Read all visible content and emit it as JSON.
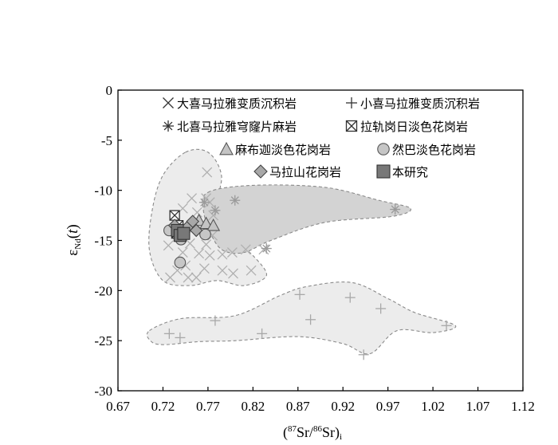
{
  "chart_data": {
    "type": "scatter",
    "xlabel": "(87Sr/86Sr)i",
    "ylabel": "εNd(t)",
    "xlim": [
      0.67,
      1.12
    ],
    "ylim": [
      -30,
      0
    ],
    "x_ticks": [
      "0.67",
      "0.72",
      "0.77",
      "0.82",
      "0.87",
      "0.92",
      "0.97",
      "1.02",
      "1.07",
      "1.12"
    ],
    "y_ticks": [
      "0",
      "-5",
      "-10",
      "-15",
      "-20",
      "-25",
      "-30"
    ],
    "legend_position": "top",
    "series": [
      {
        "name": "大喜马拉雅变质沉积岩",
        "marker": "x",
        "points": [
          [
            0.769,
            -8.2
          ],
          [
            0.752,
            -10.8
          ],
          [
            0.768,
            -10.8
          ],
          [
            0.772,
            -11.2
          ],
          [
            0.742,
            -11.8
          ],
          [
            0.758,
            -12.2
          ],
          [
            0.776,
            -12.5
          ],
          [
            0.743,
            -13.5
          ],
          [
            0.752,
            -14.0
          ],
          [
            0.775,
            -14.5
          ],
          [
            0.726,
            -15.5
          ],
          [
            0.75,
            -15.3
          ],
          [
            0.768,
            -15.4
          ],
          [
            0.742,
            -16.2
          ],
          [
            0.76,
            -16.3
          ],
          [
            0.772,
            -16.5
          ],
          [
            0.786,
            -16.4
          ],
          [
            0.797,
            -16.2
          ],
          [
            0.812,
            -15.9
          ],
          [
            0.832,
            -15.9
          ],
          [
            0.745,
            -17.5
          ],
          [
            0.736,
            -18.0
          ],
          [
            0.766,
            -17.8
          ],
          [
            0.786,
            -18.0
          ],
          [
            0.798,
            -18.3
          ],
          [
            0.818,
            -18.0
          ],
          [
            0.728,
            -18.7
          ],
          [
            0.748,
            -18.7
          ],
          [
            0.757,
            -18.7
          ]
        ]
      },
      {
        "name": "小喜马拉雅变质沉积岩",
        "marker": "+",
        "points": [
          [
            0.727,
            -24.3
          ],
          [
            0.739,
            -24.7
          ],
          [
            0.778,
            -23.0
          ],
          [
            0.83,
            -24.3
          ],
          [
            0.872,
            -20.4
          ],
          [
            0.884,
            -22.9
          ],
          [
            0.928,
            -20.7
          ],
          [
            0.943,
            -26.4
          ],
          [
            0.962,
            -21.8
          ],
          [
            1.035,
            -23.5
          ]
        ]
      },
      {
        "name": "北喜马拉雅穹窿片麻岩",
        "marker": "asterisk",
        "points": [
          [
            0.766,
            -11.2
          ],
          [
            0.778,
            -12.0
          ],
          [
            0.8,
            -11.0
          ],
          [
            0.835,
            -15.8
          ],
          [
            0.978,
            -11.9
          ]
        ]
      },
      {
        "name": "拉轨岗日淡色花岗岩",
        "marker": "square-x",
        "points": [
          [
            0.733,
            -12.5
          ],
          [
            0.737,
            -13.5
          ],
          [
            0.735,
            -14.3
          ]
        ]
      },
      {
        "name": "麻布迦淡色花岗岩",
        "marker": "triangle",
        "points": [
          [
            0.76,
            -13.0
          ],
          [
            0.768,
            -13.3
          ],
          [
            0.776,
            -13.5
          ]
        ]
      },
      {
        "name": "然巴淡色花岗岩",
        "marker": "circle",
        "points": [
          [
            0.727,
            -14.0
          ],
          [
            0.74,
            -14.9
          ],
          [
            0.767,
            -14.4
          ],
          [
            0.739,
            -17.2
          ]
        ]
      },
      {
        "name": "马拉山花岗岩",
        "marker": "diamond",
        "points": [
          [
            0.733,
            -13.5
          ],
          [
            0.741,
            -14.0
          ],
          [
            0.747,
            -13.7
          ],
          [
            0.753,
            -13.1
          ],
          [
            0.757,
            -14.0
          ]
        ]
      },
      {
        "name": "本研究",
        "marker": "square",
        "points": [
          [
            0.736,
            -14.0
          ],
          [
            0.739,
            -14.5
          ],
          [
            0.743,
            -14.3
          ]
        ]
      }
    ],
    "regions": [
      {
        "fill": "#ececec",
        "points": [
          [
            0.745,
            -6.2
          ],
          [
            0.77,
            -6.2
          ],
          [
            0.785,
            -8.5
          ],
          [
            0.78,
            -12.0
          ],
          [
            0.8,
            -15.0
          ],
          [
            0.82,
            -16.5
          ],
          [
            0.835,
            -18.5
          ],
          [
            0.81,
            -19.5
          ],
          [
            0.78,
            -19.0
          ],
          [
            0.75,
            -19.5
          ],
          [
            0.72,
            -19.0
          ],
          [
            0.705,
            -16.0
          ],
          [
            0.708,
            -12.0
          ],
          [
            0.72,
            -8.5
          ]
        ]
      },
      {
        "fill": "#d3d3d3",
        "points": [
          [
            0.77,
            -10.2
          ],
          [
            0.82,
            -9.5
          ],
          [
            0.9,
            -9.7
          ],
          [
            0.96,
            -11.0
          ],
          [
            0.995,
            -11.8
          ],
          [
            0.975,
            -12.6
          ],
          [
            0.9,
            -13.2
          ],
          [
            0.84,
            -15.0
          ],
          [
            0.81,
            -16.2
          ],
          [
            0.787,
            -16.0
          ],
          [
            0.774,
            -14.5
          ],
          [
            0.765,
            -12.0
          ]
        ]
      },
      {
        "fill": "#ececec",
        "points": [
          [
            0.705,
            -24.0
          ],
          [
            0.74,
            -22.8
          ],
          [
            0.8,
            -22.5
          ],
          [
            0.85,
            -20.5
          ],
          [
            0.88,
            -19.6
          ],
          [
            0.93,
            -19.2
          ],
          [
            0.97,
            -20.8
          ],
          [
            1.0,
            -22.2
          ],
          [
            1.045,
            -23.5
          ],
          [
            1.02,
            -24.2
          ],
          [
            0.98,
            -24.0
          ],
          [
            0.95,
            -26.3
          ],
          [
            0.92,
            -25.3
          ],
          [
            0.87,
            -24.6
          ],
          [
            0.8,
            -25.0
          ],
          [
            0.76,
            -25.1
          ],
          [
            0.72,
            -25.4
          ],
          [
            0.706,
            -25.0
          ]
        ]
      }
    ]
  }
}
